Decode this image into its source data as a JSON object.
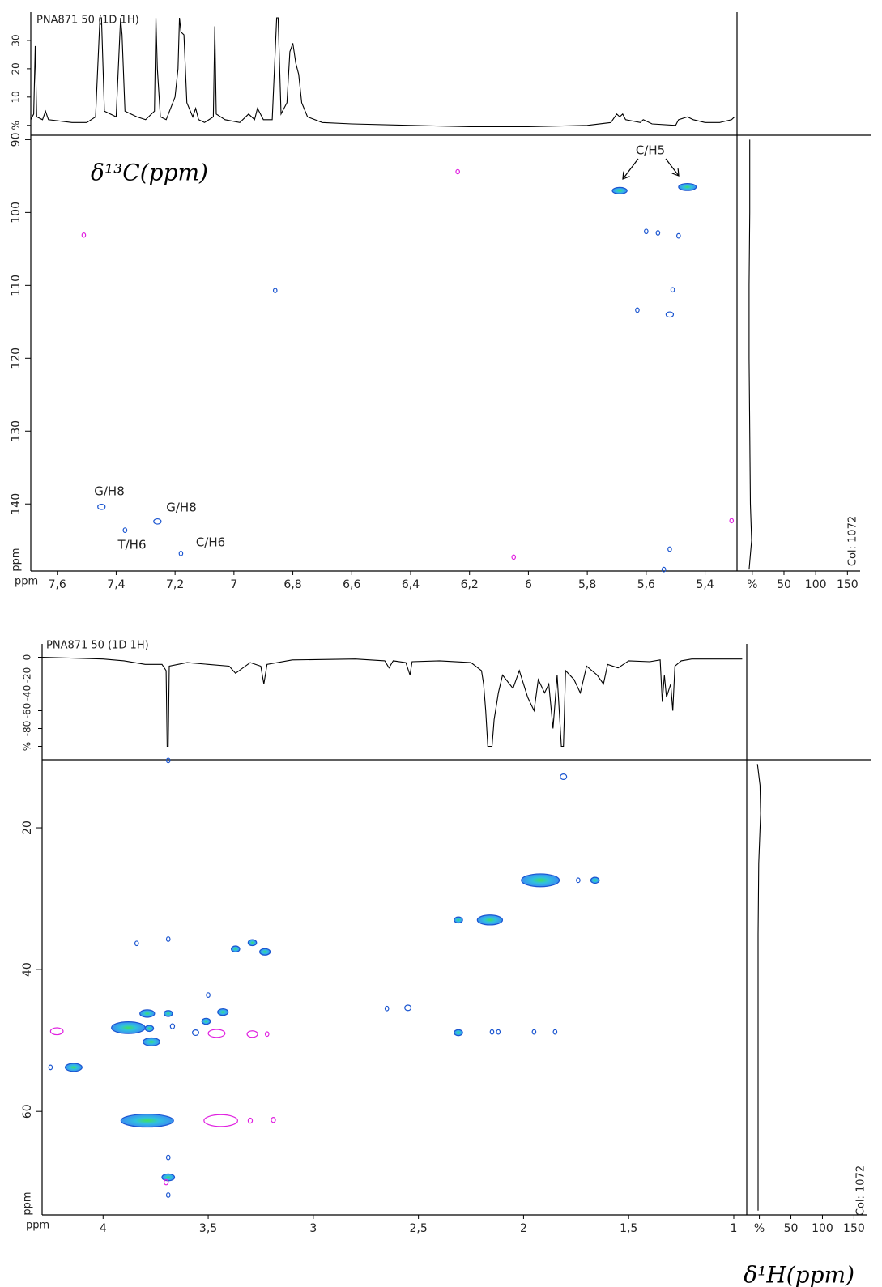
{
  "chart_data": [
    {
      "type": "contour",
      "title": "PNA871 50 (1D 1H)",
      "x_label": "ppm",
      "y_label": "ppm",
      "axis_title": "δ¹³C(ppm)",
      "xlim": [
        7.69,
        5.297
      ],
      "xticks": [
        {
          "value": 7.6,
          "label": "7,6"
        },
        {
          "value": 7.4,
          "label": "7,4"
        },
        {
          "value": 7.2,
          "label": "7,2"
        },
        7,
        {
          "value": 6.8,
          "label": "6,8"
        },
        {
          "value": 6.6,
          "label": "6,6"
        },
        {
          "value": 6.4,
          "label": "6,4"
        },
        {
          "value": 6.2,
          "label": "6,2"
        },
        6,
        {
          "value": 5.8,
          "label": "5,8"
        },
        {
          "value": 5.6,
          "label": "5,6"
        },
        {
          "value": 5.4,
          "label": "5,4"
        }
      ],
      "ylim": [
        149.2,
        89.4
      ],
      "yticks": [
        90,
        100,
        110,
        120,
        130,
        140
      ],
      "spectrum": {
        "color": "#000000",
        "ylim": [
          -3.5,
          40
        ],
        "yticks": [
          {
            "value": 0,
            "label": "%"
          },
          10,
          20,
          30
        ],
        "x": [
          7.69,
          7.68,
          7.675,
          7.67,
          7.65,
          7.64,
          7.63,
          7.55,
          7.5,
          7.47,
          7.455,
          7.45,
          7.44,
          7.4,
          7.385,
          7.38,
          7.37,
          7.33,
          7.3,
          7.27,
          7.265,
          7.26,
          7.25,
          7.23,
          7.2,
          7.19,
          7.185,
          7.18,
          7.17,
          7.16,
          7.14,
          7.13,
          7.12,
          7.1,
          7.07,
          7.065,
          7.06,
          7.03,
          6.98,
          6.95,
          6.93,
          6.92,
          6.9,
          6.87,
          6.855,
          6.85,
          6.84,
          6.82,
          6.81,
          6.8,
          6.79,
          6.78,
          6.77,
          6.75,
          6.7,
          6.6,
          6.4,
          6.2,
          6.0,
          5.8,
          5.72,
          5.7,
          5.69,
          5.68,
          5.67,
          5.62,
          5.61,
          5.58,
          5.5,
          5.49,
          5.46,
          5.44,
          5.4,
          5.35,
          5.31,
          5.3
        ],
        "values": [
          2,
          4,
          28,
          3,
          2,
          5,
          2,
          1,
          1,
          3,
          38,
          38,
          5,
          3,
          38,
          32,
          5,
          3,
          2,
          5,
          38,
          20,
          3,
          2,
          10,
          20,
          38,
          33,
          32,
          8,
          3,
          6,
          2,
          1,
          3,
          35,
          4,
          2,
          1,
          4,
          2,
          6,
          2,
          2,
          38,
          38,
          4,
          8,
          26,
          29,
          22,
          18,
          8,
          3,
          1,
          0.5,
          0,
          -0.5,
          -0.5,
          0,
          1,
          4,
          3,
          4,
          2,
          1,
          2,
          0.5,
          0,
          2,
          3,
          2,
          1,
          1,
          2,
          3
        ]
      },
      "projection": {
        "label": "Col: 1072",
        "xlim": [
          -24,
          170
        ],
        "xticks": [
          {
            "value": 0,
            "label": "%"
          },
          50,
          100,
          150
        ],
        "y": [
          90,
          100,
          110,
          120,
          130,
          140,
          145,
          149
        ],
        "values": [
          -4,
          -4,
          -5,
          -5,
          -4,
          -3,
          -1,
          -5
        ]
      },
      "series": [
        {
          "color": "#1a55d0",
          "x": [
            5.69,
            5.46,
            5.6,
            5.56,
            5.49,
            5.51,
            5.63,
            5.52,
            7.45,
            7.26,
            7.37,
            7.18,
            5.52,
            6.86,
            5.54
          ],
          "y": [
            97.0,
            96.5,
            102.6,
            102.8,
            103.2,
            110.6,
            113.4,
            114.0,
            140.4,
            142.4,
            143.6,
            146.8,
            146.2,
            110.7,
            149.0
          ],
          "sizes": [
            0.05,
            0.06,
            0.01,
            0.01,
            0.01,
            0.01,
            0.01,
            0.025,
            0.025,
            0.025,
            0.01,
            0.01,
            0.01,
            0.005,
            0.01
          ]
        },
        {
          "color": "#e020e0",
          "x": [
            7.51,
            6.24,
            6.05,
            5.31
          ],
          "y": [
            103.1,
            94.4,
            147.3,
            142.3
          ],
          "sizes": [
            0.005,
            0.005,
            0.005,
            0.005
          ]
        }
      ],
      "annotations": [
        "C/H5",
        "G/H8",
        "G/H8",
        "T/H6",
        "C/H6"
      ]
    },
    {
      "type": "contour",
      "title": "PNA871 50 (1D 1H)",
      "x_label": "ppm",
      "y_label": "ppm",
      "axis_title": "δ¹H(ppm)",
      "xlim": [
        4.29,
        0.946
      ],
      "xticks": [
        4,
        {
          "value": 3.5,
          "label": "3,5"
        },
        3,
        {
          "value": 2.5,
          "label": "2,5"
        },
        2,
        {
          "value": 1.5,
          "label": "1,5"
        },
        1
      ],
      "ylim": [
        74.6,
        10.4
      ],
      "yticks": [
        20,
        40,
        60
      ],
      "spectrum": {
        "color": "#000000",
        "ylim": [
          -115,
          15
        ],
        "yticks": [
          0,
          -20,
          -40,
          -60,
          -80,
          {
            "value": -100,
            "label": "%"
          }
        ],
        "x": [
          4.29,
          4.0,
          3.9,
          3.8,
          3.72,
          3.7,
          3.695,
          3.69,
          3.685,
          3.6,
          3.5,
          3.4,
          3.37,
          3.3,
          3.25,
          3.235,
          3.22,
          3.1,
          2.8,
          2.66,
          2.64,
          2.62,
          2.56,
          2.54,
          2.53,
          2.4,
          2.25,
          2.2,
          2.19,
          2.18,
          2.17,
          2.16,
          2.15,
          2.14,
          2.12,
          2.1,
          2.05,
          2.02,
          1.98,
          1.95,
          1.93,
          1.9,
          1.88,
          1.86,
          1.84,
          1.82,
          1.81,
          1.8,
          1.76,
          1.73,
          1.7,
          1.65,
          1.62,
          1.6,
          1.55,
          1.5,
          1.4,
          1.35,
          1.34,
          1.33,
          1.32,
          1.3,
          1.29,
          1.28,
          1.25,
          1.2,
          1.0,
          0.96
        ],
        "values": [
          0,
          -2,
          -4,
          -8,
          -8,
          -15,
          -100,
          -100,
          -10,
          -6,
          -8,
          -10,
          -18,
          -6,
          -10,
          -30,
          -8,
          -3,
          -2,
          -4,
          -12,
          -4,
          -6,
          -20,
          -5,
          -4,
          -6,
          -15,
          -30,
          -60,
          -100,
          -100,
          -100,
          -70,
          -40,
          -20,
          -35,
          -15,
          -45,
          -60,
          -25,
          -40,
          -30,
          -80,
          -20,
          -100,
          -100,
          -15,
          -25,
          -40,
          -10,
          -20,
          -30,
          -8,
          -12,
          -4,
          -5,
          -3,
          -50,
          -20,
          -45,
          -30,
          -60,
          -10,
          -4,
          -2,
          -2,
          -2
        ]
      },
      "projection": {
        "label": "Col: 1072",
        "xlim": [
          -20,
          170
        ],
        "xticks": [
          {
            "value": 0,
            "label": "%"
          },
          50,
          100,
          150
        ],
        "y": [
          11,
          14,
          18,
          25,
          35,
          50,
          65,
          74
        ],
        "values": [
          -3,
          1,
          2,
          -1,
          -2,
          -2,
          -2,
          -2
        ]
      },
      "series": [
        {
          "color": "#1a55d0",
          "x": [
            3.69,
            1.81,
            1.92,
            1.74,
            1.66,
            2.16,
            2.31,
            3.84,
            3.69,
            3.37,
            3.29,
            3.23,
            3.5,
            2.65,
            2.55,
            3.43,
            3.69,
            3.88,
            3.79,
            3.78,
            3.67,
            3.51,
            3.56,
            3.77,
            2.31,
            2.15,
            2.12,
            1.95,
            1.85,
            4.14,
            4.25,
            3.79,
            3.69,
            3.69,
            3.69
          ],
          "y": [
            10.5,
            12.8,
            27.4,
            27.4,
            27.4,
            33.0,
            33.0,
            36.3,
            35.7,
            37.1,
            36.2,
            37.5,
            43.6,
            45.5,
            45.4,
            46.0,
            46.2,
            48.2,
            46.2,
            48.3,
            48.0,
            47.3,
            48.9,
            50.2,
            48.9,
            48.8,
            48.8,
            48.8,
            48.8,
            53.8,
            53.8,
            61.3,
            69.3,
            66.5,
            71.8
          ],
          "sizes": [
            0.01,
            0.03,
            0.18,
            0.01,
            0.04,
            0.12,
            0.04,
            0.01,
            0.01,
            0.04,
            0.04,
            0.05,
            0.01,
            0.01,
            0.03,
            0.05,
            0.04,
            0.16,
            0.07,
            0.04,
            0.02,
            0.04,
            0.03,
            0.08,
            0.04,
            0.01,
            0.01,
            0.01,
            0.01,
            0.08,
            0.01,
            0.25,
            0.06,
            0.01,
            0.01
          ]
        },
        {
          "color": "#e020e0",
          "x": [
            4.22,
            3.46,
            3.29,
            3.22,
            3.44,
            3.3,
            3.19,
            3.7
          ],
          "y": [
            48.7,
            49.0,
            49.1,
            49.1,
            61.3,
            61.3,
            61.2,
            70.0
          ],
          "sizes": [
            0.06,
            0.08,
            0.05,
            0.01,
            0.16,
            0.02,
            0.02,
            0.02
          ]
        }
      ]
    }
  ]
}
